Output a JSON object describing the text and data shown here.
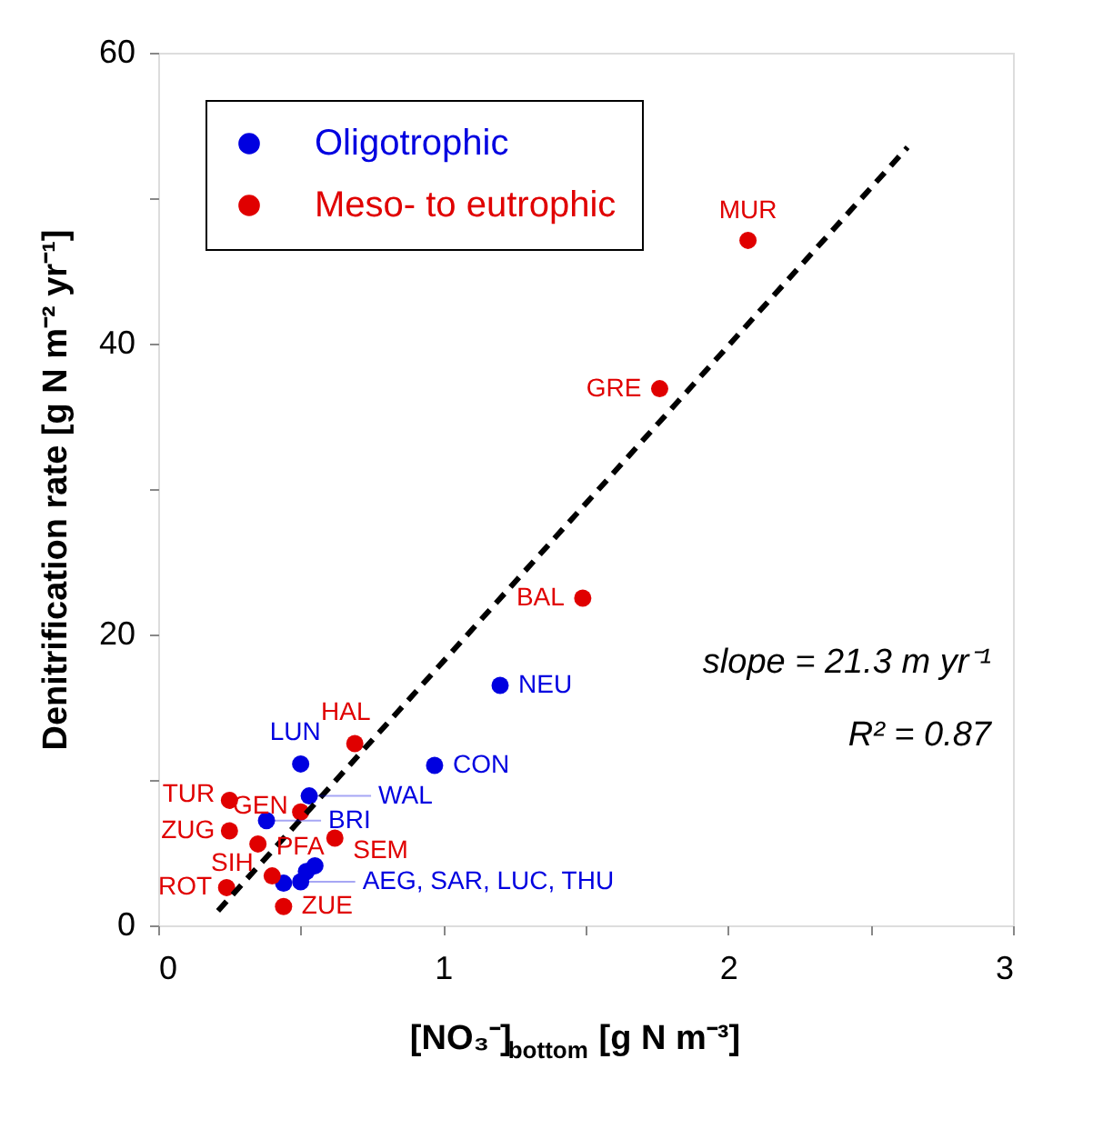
{
  "chart_data": {
    "type": "scatter",
    "xlabel": "[NO₃⁻]$_{bottom}$  [g N m⁻³]",
    "ylabel": "Denitrification rate  [g N m⁻² yr⁻¹]",
    "xlim": [
      0,
      3
    ],
    "ylim": [
      0,
      60
    ],
    "xticks": [
      0,
      {
        "value": 0.5,
        "label": null
      },
      1,
      {
        "value": 1.5,
        "label": null
      },
      2,
      {
        "value": 2.5,
        "label": null
      },
      3
    ],
    "yticks": [
      0,
      {
        "value": 10,
        "label": null
      },
      20,
      {
        "value": 30,
        "label": null
      },
      40,
      {
        "value": 50,
        "label": null
      },
      60
    ],
    "grid": false,
    "legend": "top left",
    "marker": "circle",
    "series": [
      {
        "name": "Oligotrophic",
        "color": "#0000e0",
        "x": [
          1.2,
          0.97,
          0.5,
          0.53,
          0.38,
          0.44,
          0.5,
          0.52,
          0.55
        ],
        "values": [
          16.5,
          11.0,
          11.1,
          8.9,
          7.2,
          2.9,
          3.0,
          3.7,
          4.1
        ]
      },
      {
        "name": "Meso- to eutrophic",
        "color": "#e00000",
        "x": [
          2.07,
          1.76,
          1.49,
          0.69,
          0.5,
          0.25,
          0.25,
          0.35,
          0.62,
          0.4,
          0.24,
          0.44
        ],
        "values": [
          47.1,
          36.9,
          22.5,
          12.5,
          7.8,
          8.6,
          6.5,
          5.6,
          6.0,
          3.4,
          2.6,
          1.3
        ]
      },
      {
        "type": "line",
        "color": "#000000",
        "line_style": "dashed",
        "marker": "none",
        "x": [
          0.21,
          2.63
        ],
        "values": [
          1.0,
          53.5
        ]
      }
    ],
    "annotations": [
      {
        "text": "MUR",
        "x": 2.07,
        "y": 47.1
      },
      {
        "text": "GRE",
        "x": 1.76,
        "y": 36.9
      },
      {
        "text": "BAL",
        "x": 1.49,
        "y": 22.5
      },
      {
        "text": "NEU",
        "x": 1.2,
        "y": 16.5
      },
      {
        "text": "CON",
        "x": 0.97,
        "y": 11.0
      },
      {
        "text": "HAL",
        "x": 0.69,
        "y": 12.5
      },
      {
        "text": "LUN",
        "x": 0.5,
        "y": 11.1
      },
      {
        "text": "WAL",
        "x": 0.53,
        "y": 8.9
      },
      {
        "text": "GEN",
        "x": 0.5,
        "y": 7.8
      },
      {
        "text": "TUR",
        "x": 0.25,
        "y": 8.6
      },
      {
        "text": "BRI",
        "x": 0.38,
        "y": 7.2
      },
      {
        "text": "ZUG",
        "x": 0.25,
        "y": 6.5
      },
      {
        "text": "PFA",
        "x": 0.35,
        "y": 5.6
      },
      {
        "text": "SEM",
        "x": 0.62,
        "y": 6.0
      },
      {
        "text": "SIH",
        "x": 0.4,
        "y": 3.4
      },
      {
        "text": "ROT",
        "x": 0.24,
        "y": 2.6
      },
      {
        "text": "ZUE",
        "x": 0.44,
        "y": 1.3
      },
      {
        "text": "AEG, SAR, LUC, THU",
        "x": 0.5,
        "y": 3.0
      },
      "slope = 21.3 m yr⁻¹",
      "R² = 0.87"
    ]
  }
}
